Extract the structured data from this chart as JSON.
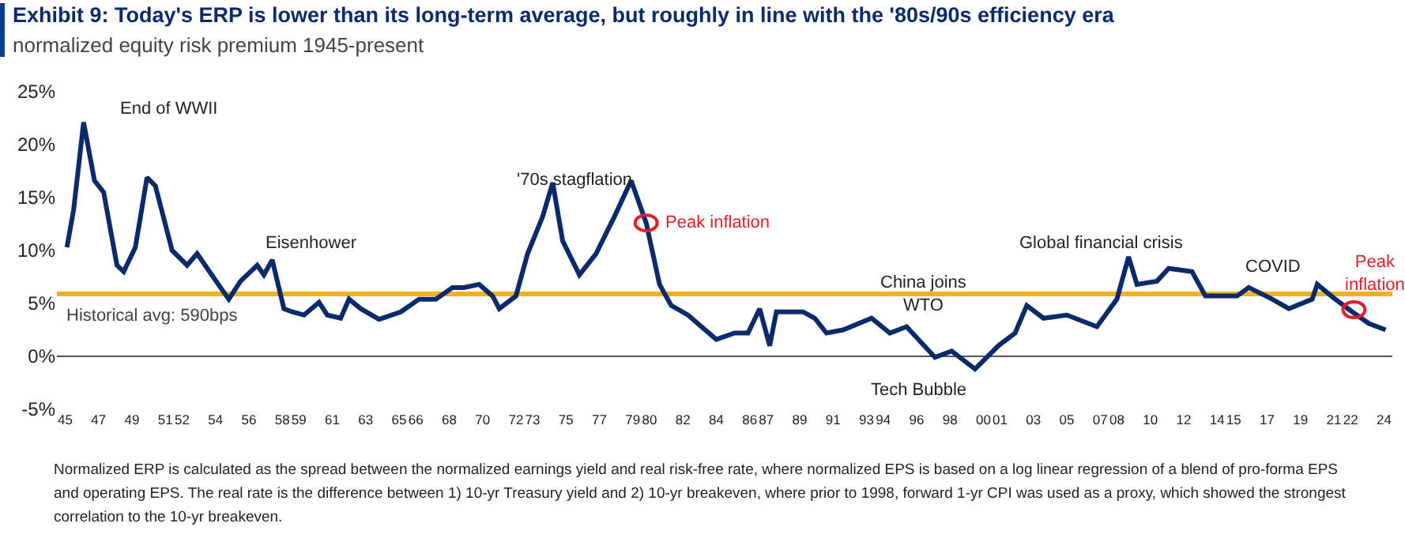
{
  "chart_data": {
    "type": "line",
    "title": "Exhibit 9: Today's ERP is lower than its long-term average, but roughly in line with the '80s/90s efficiency era",
    "subtitle": "normalized equity risk premium 1945-present",
    "x": [
      1945.1,
      1945.5,
      1946.1,
      1946.75,
      1947.3,
      1948.1,
      1948.5,
      1949.2,
      1949.9,
      1950.4,
      1951.4,
      1952.3,
      1952.9,
      1954.3,
      1954.8,
      1955.5,
      1956.5,
      1956.9,
      1957.4,
      1958.1,
      1958.6,
      1959.3,
      1960.2,
      1960.7,
      1961.5,
      1962.0,
      1962.7,
      1963.8,
      1965.1,
      1966.2,
      1967.2,
      1968.2,
      1968.9,
      1969.8,
      1970.6,
      1971.0,
      1972.0,
      1972.7,
      1973.6,
      1974.2,
      1974.8,
      1975.8,
      1976.8,
      1977.9,
      1978.9,
      1979.8,
      1980.6,
      1981.3,
      1982.3,
      1984.0,
      1985.1,
      1985.9,
      1986.6,
      1987.2,
      1987.6,
      1989.2,
      1989.9,
      1990.6,
      1991.6,
      1993.3,
      1994.4,
      1995.4,
      1997.1,
      1998.1,
      1999.5,
      2000.9,
      2001.9,
      2002.6,
      2003.6,
      2005.0,
      2006.8,
      2008.0,
      2008.7,
      2009.2,
      2010.4,
      2011.1,
      2012.5,
      2013.3,
      2015.2,
      2015.9,
      2017.3,
      2018.3,
      2019.7,
      2020.0,
      2021.0,
      2022.1,
      2023.1,
      2024.1
    ],
    "series": [
      {
        "color": "#0b2a6b",
        "values": [
          10.3,
          13.8,
          22.1,
          16.6,
          15.5,
          8.6,
          8.0,
          10.3,
          16.9,
          16.1,
          10.0,
          8.6,
          9.7,
          6.5,
          5.4,
          7.1,
          8.6,
          7.7,
          9.1,
          4.5,
          4.2,
          3.9,
          5.1,
          3.9,
          3.6,
          5.4,
          4.5,
          3.5,
          4.2,
          5.4,
          5.4,
          6.5,
          6.5,
          6.8,
          5.7,
          4.5,
          5.7,
          9.7,
          13.2,
          16.4,
          10.9,
          7.7,
          9.7,
          13.2,
          16.6,
          12.6,
          6.8,
          4.8,
          3.9,
          1.6,
          2.2,
          2.2,
          4.5,
          1.0,
          4.2,
          4.2,
          3.6,
          2.2,
          2.5,
          3.6,
          2.2,
          2.8,
          -0.1,
          0.5,
          -1.2,
          1.0,
          2.2,
          4.8,
          3.6,
          3.9,
          2.8,
          5.4,
          9.4,
          6.8,
          7.1,
          8.3,
          8.0,
          5.7,
          5.7,
          6.5,
          5.4,
          4.5,
          5.4,
          6.8,
          5.5,
          4.2,
          3.1,
          2.5
        ]
      }
    ],
    "xlim": [
      1944.5,
      2024.5
    ],
    "xticks": [
      {
        "value": 1945,
        "label": "45"
      },
      {
        "value": 1947,
        "label": "47"
      },
      {
        "value": 1949,
        "label": "49"
      },
      {
        "value": 1951,
        "label": "51"
      },
      {
        "value": 1952,
        "label": "52"
      },
      {
        "value": 1954,
        "label": "54"
      },
      {
        "value": 1956,
        "label": "56"
      },
      {
        "value": 1958,
        "label": "58"
      },
      {
        "value": 1959,
        "label": "59"
      },
      {
        "value": 1961,
        "label": "61"
      },
      {
        "value": 1963,
        "label": "63"
      },
      {
        "value": 1965,
        "label": "65"
      },
      {
        "value": 1966,
        "label": "66"
      },
      {
        "value": 1968,
        "label": "68"
      },
      {
        "value": 1970,
        "label": "70"
      },
      {
        "value": 1972,
        "label": "72"
      },
      {
        "value": 1973,
        "label": "73"
      },
      {
        "value": 1975,
        "label": "75"
      },
      {
        "value": 1977,
        "label": "77"
      },
      {
        "value": 1979,
        "label": "79"
      },
      {
        "value": 1980,
        "label": "80"
      },
      {
        "value": 1982,
        "label": "82"
      },
      {
        "value": 1984,
        "label": "84"
      },
      {
        "value": 1986,
        "label": "86"
      },
      {
        "value": 1987,
        "label": "87"
      },
      {
        "value": 1989,
        "label": "89"
      },
      {
        "value": 1991,
        "label": "91"
      },
      {
        "value": 1993,
        "label": "93"
      },
      {
        "value": 1994,
        "label": "94"
      },
      {
        "value": 1996,
        "label": "96"
      },
      {
        "value": 1998,
        "label": "98"
      },
      {
        "value": 2000,
        "label": "00"
      },
      {
        "value": 2001,
        "label": "01"
      },
      {
        "value": 2003,
        "label": "03"
      },
      {
        "value": 2005,
        "label": "05"
      },
      {
        "value": 2007,
        "label": "07"
      },
      {
        "value": 2008,
        "label": "08"
      },
      {
        "value": 2010,
        "label": "10"
      },
      {
        "value": 2012,
        "label": "12"
      },
      {
        "value": 2014,
        "label": "14"
      },
      {
        "value": 2015,
        "label": "15"
      },
      {
        "value": 2017,
        "label": "17"
      },
      {
        "value": 2019,
        "label": "19"
      },
      {
        "value": 2021,
        "label": "21"
      },
      {
        "value": 2022,
        "label": "22"
      },
      {
        "value": 2024,
        "label": "24"
      }
    ],
    "ylim": [
      -5,
      25
    ],
    "yticks": [
      {
        "value": -5,
        "label": "-5%"
      },
      {
        "value": 0,
        "label": "0%"
      },
      {
        "value": 5,
        "label": "5%"
      },
      {
        "value": 10,
        "label": "10%"
      },
      {
        "value": 15,
        "label": "15%"
      },
      {
        "value": 20,
        "label": "20%"
      },
      {
        "value": 25,
        "label": "25%"
      }
    ],
    "ref_lines": [
      {
        "axis": "y",
        "value": 5.9,
        "label": "Historical avg: 590bps",
        "color": "#f2b21e"
      },
      {
        "axis": "y",
        "value": 0,
        "color": "#555555"
      }
    ],
    "annotations": [
      "End of WWII",
      "Eisenhower",
      "'70s stagflation",
      {
        "text": "Peak inflation",
        "x": 1979.8,
        "y": 12.6
      },
      "China joins\nWTO",
      "Tech Bubble",
      "Global financial crisis",
      "COVID",
      {
        "text": "Peak\ninflation",
        "x": 2022.2,
        "y": 4.4
      },
      "Normalized ERP is calculated as the spread between the normalized earnings yield and real risk-free rate, where normalized EPS is based on a log linear regression of a blend of pro-forma EPS and operating EPS. The real rate is the difference between 1) 10-yr Treasury yield and 2) 10-yr breakeven, where prior to 1998, forward 1-yr CPI was used as a proxy, which showed the strongest correlation to the 10-yr breakeven."
    ],
    "marker": "none",
    "line_style": "solid"
  }
}
